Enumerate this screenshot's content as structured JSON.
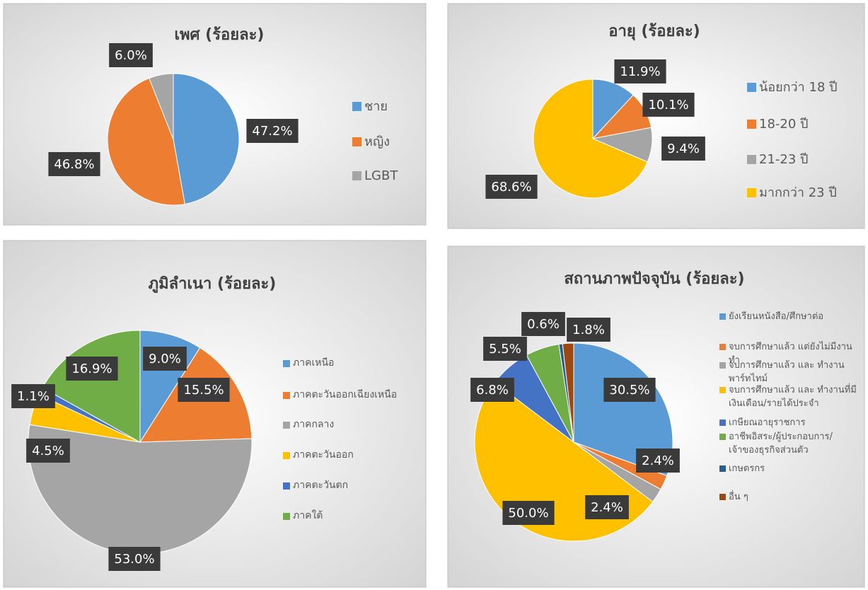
{
  "chart_data": [
    {
      "type": "pie",
      "title": "เพศ (ร้อยละ)",
      "categories": [
        "ชาย",
        "หญิง",
        "LGBT"
      ],
      "values": [
        47.2,
        46.8,
        6.0
      ],
      "value_labels": [
        "47.2%",
        "46.8%",
        "6.0%"
      ],
      "colors": [
        "#5b9bd5",
        "#ed7d31",
        "#a5a5a5"
      ]
    },
    {
      "type": "pie",
      "title": "อายุ (ร้อยละ)",
      "categories": [
        "น้อยกว่า 18 ปี",
        "18-20 ปี",
        "21-23 ปี",
        "มากกว่า 23 ปี"
      ],
      "values": [
        11.9,
        10.1,
        9.4,
        68.6
      ],
      "value_labels": [
        "11.9%",
        "10.1%",
        "9.4%",
        "68.6%"
      ],
      "colors": [
        "#5b9bd5",
        "#ed7d31",
        "#a5a5a5",
        "#ffc000"
      ]
    },
    {
      "type": "pie",
      "title": "ภูมิลำเนา (ร้อยละ)",
      "categories": [
        "ภาคเหนือ",
        "ภาคตะวันออกเฉียงเหนือ",
        "ภาคกลาง",
        "ภาคตะวันออก",
        "ภาคตะวันตก",
        "ภาคใต้"
      ],
      "values": [
        9.0,
        15.5,
        53.0,
        4.5,
        1.1,
        16.9
      ],
      "value_labels": [
        "9.0%",
        "15.5%",
        "53.0%",
        "4.5%",
        "1.1%",
        "16.9%"
      ],
      "colors": [
        "#5b9bd5",
        "#ed7d31",
        "#a5a5a5",
        "#ffc000",
        "#4472c4",
        "#70ad47"
      ]
    },
    {
      "type": "pie",
      "title": "สถานภาพปัจจุบัน (ร้อยละ)",
      "categories": [
        "ยังเรียนหนังสือ/ศึกษาต่อ",
        "จบการศึกษาแล้ว แต่ยังไม่มีงานทำ",
        "จบการศึกษาแล้ว และ ทำงานพาร์ทไทม์",
        "จบการศึกษาแล้ว และ ทำงานที่มีเงินเดือน/รายได้ประจำ",
        "เกษียณอายุราชการ",
        "อาชีพอิสระ/ผู้ประกอบการ/เจ้าของธุรกิจส่วนตัว",
        "เกษตรกร",
        "อื่น ๆ"
      ],
      "values": [
        30.5,
        2.4,
        2.4,
        50.0,
        6.8,
        5.5,
        0.6,
        1.8
      ],
      "value_labels": [
        "30.5%",
        "2.4%",
        "2.4%",
        "50.0%",
        "6.8%",
        "5.5%",
        "0.6%",
        "1.8%"
      ],
      "colors": [
        "#5b9bd5",
        "#ed7d31",
        "#a5a5a5",
        "#ffc000",
        "#4472c4",
        "#70ad47",
        "#255e91",
        "#9e480e"
      ]
    }
  ]
}
